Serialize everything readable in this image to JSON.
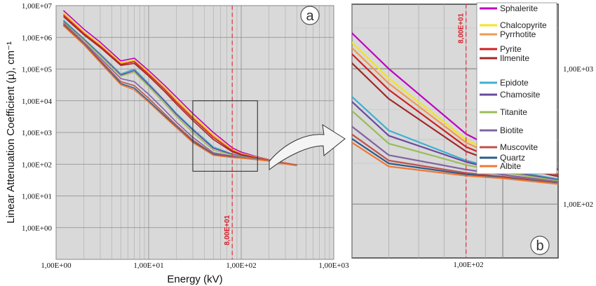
{
  "chart_data": [
    {
      "panel": "a",
      "type": "line",
      "xlabel": "Energy (kV)",
      "ylabel": "Linear Attenuation Coefficient (µ), cm⁻¹",
      "x_scale": "log",
      "y_scale": "log",
      "xlim": [
        1,
        1000
      ],
      "ylim": [
        0.1,
        10000000
      ],
      "x_ticks": [
        "1,00E+00",
        "1,00E+01",
        "1,00E+02",
        "1,00E+03"
      ],
      "y_ticks": [
        "1,00E+07",
        "1,00E+06",
        "1,00E+05",
        "1,00E+04",
        "1,00E+03",
        "1,00E+02",
        "1,00E+01",
        "1,00E+00"
      ],
      "grid": true,
      "reference_line": {
        "x": 80,
        "label": "8,00E+01"
      },
      "zoom_box": {
        "xlim": [
          30,
          150
        ],
        "ylim": [
          60,
          10000
        ]
      },
      "x": [
        1.2,
        2,
        3,
        5,
        7,
        10,
        15,
        20,
        30,
        50,
        80,
        100,
        150,
        200,
        300,
        400
      ],
      "series": [
        {
          "name": "Sphalerite",
          "color": "#c000c0",
          "values": [
            7000000,
            1800000,
            700000,
            180000,
            220000,
            90000,
            30000,
            13000,
            4000,
            1000,
            330,
            240,
            170,
            140,
            110,
            95
          ]
        },
        {
          "name": "Chalcopyrite",
          "color": "#f2e422",
          "values": [
            6000000,
            1500000,
            600000,
            160000,
            190000,
            80000,
            26000,
            11000,
            3400,
            850,
            300,
            220,
            165,
            138,
            108,
            94
          ]
        },
        {
          "name": "Pyrrhotite",
          "color": "#f09a50",
          "values": [
            5500000,
            1400000,
            560000,
            150000,
            180000,
            74000,
            24000,
            10000,
            3100,
            780,
            285,
            213,
            162,
            136,
            107,
            93
          ]
        },
        {
          "name": "Pyrite",
          "color": "#d02020",
          "values": [
            5000000,
            1300000,
            520000,
            140000,
            170000,
            68000,
            22000,
            9000,
            2800,
            700,
            265,
            205,
            158,
            134,
            106,
            93
          ]
        },
        {
          "name": "Ilmenite",
          "color": "#a02828",
          "values": [
            4500000,
            1200000,
            480000,
            130000,
            150000,
            60000,
            19000,
            7800,
            2400,
            600,
            245,
            195,
            154,
            132,
            105,
            92
          ]
        },
        {
          "name": "Epidote",
          "color": "#40b0d0",
          "values": [
            3500000,
            900000,
            300000,
            70000,
            100000,
            35000,
            10000,
            4000,
            1300,
            350,
            210,
            180,
            148,
            130,
            104,
            92
          ]
        },
        {
          "name": "Chamosite",
          "color": "#6a4aa0",
          "values": [
            3200000,
            850000,
            280000,
            65000,
            90000,
            32000,
            9500,
            3700,
            1200,
            320,
            205,
            176,
            146,
            129,
            104,
            92
          ]
        },
        {
          "name": "Titanite",
          "color": "#9bbb59",
          "values": [
            3000000,
            800000,
            260000,
            60000,
            80000,
            28000,
            8000,
            3200,
            1000,
            280,
            195,
            172,
            144,
            128,
            103,
            91
          ]
        },
        {
          "name": "Biotite",
          "color": "#8064a2",
          "values": [
            2800000,
            700000,
            220000,
            50000,
            40000,
            16000,
            5000,
            2100,
            700,
            230,
            180,
            165,
            142,
            127,
            103,
            91
          ]
        },
        {
          "name": "Muscovite",
          "color": "#c0504d",
          "values": [
            2600000,
            650000,
            190000,
            40000,
            30000,
            12000,
            3800,
            1700,
            580,
            210,
            170,
            160,
            140,
            126,
            102,
            91
          ]
        },
        {
          "name": "Quartz",
          "color": "#2e5c8a",
          "values": [
            2400000,
            600000,
            170000,
            35000,
            25000,
            10000,
            3300,
            1500,
            520,
            200,
            166,
            157,
            139,
            126,
            102,
            91
          ]
        },
        {
          "name": "Albite",
          "color": "#f07830",
          "values": [
            2300000,
            580000,
            160000,
            32000,
            22000,
            9000,
            3000,
            1400,
            480,
            190,
            162,
            155,
            138,
            125,
            101,
            90
          ]
        }
      ]
    },
    {
      "panel": "b",
      "type": "line",
      "description_of_view": "zoom of panel a",
      "x_ticks": [
        "1,00E+02"
      ],
      "y_ticks": [
        "1,00E+03",
        "1,00E+02"
      ],
      "grid": true,
      "reference_line": {
        "x": 80,
        "label": "8,00E+01"
      },
      "legend_position": "top-right",
      "legend": [
        "Sphalerite",
        "Chalcopyrite",
        "Pyrrhotite",
        "Pyrite",
        "Ilmenite",
        "Epidote",
        "Chamosite",
        "Titanite",
        "Biotite",
        "Muscovite",
        "Quartz",
        "Albite"
      ]
    }
  ],
  "panel_labels": {
    "a": "a",
    "b": "b"
  }
}
